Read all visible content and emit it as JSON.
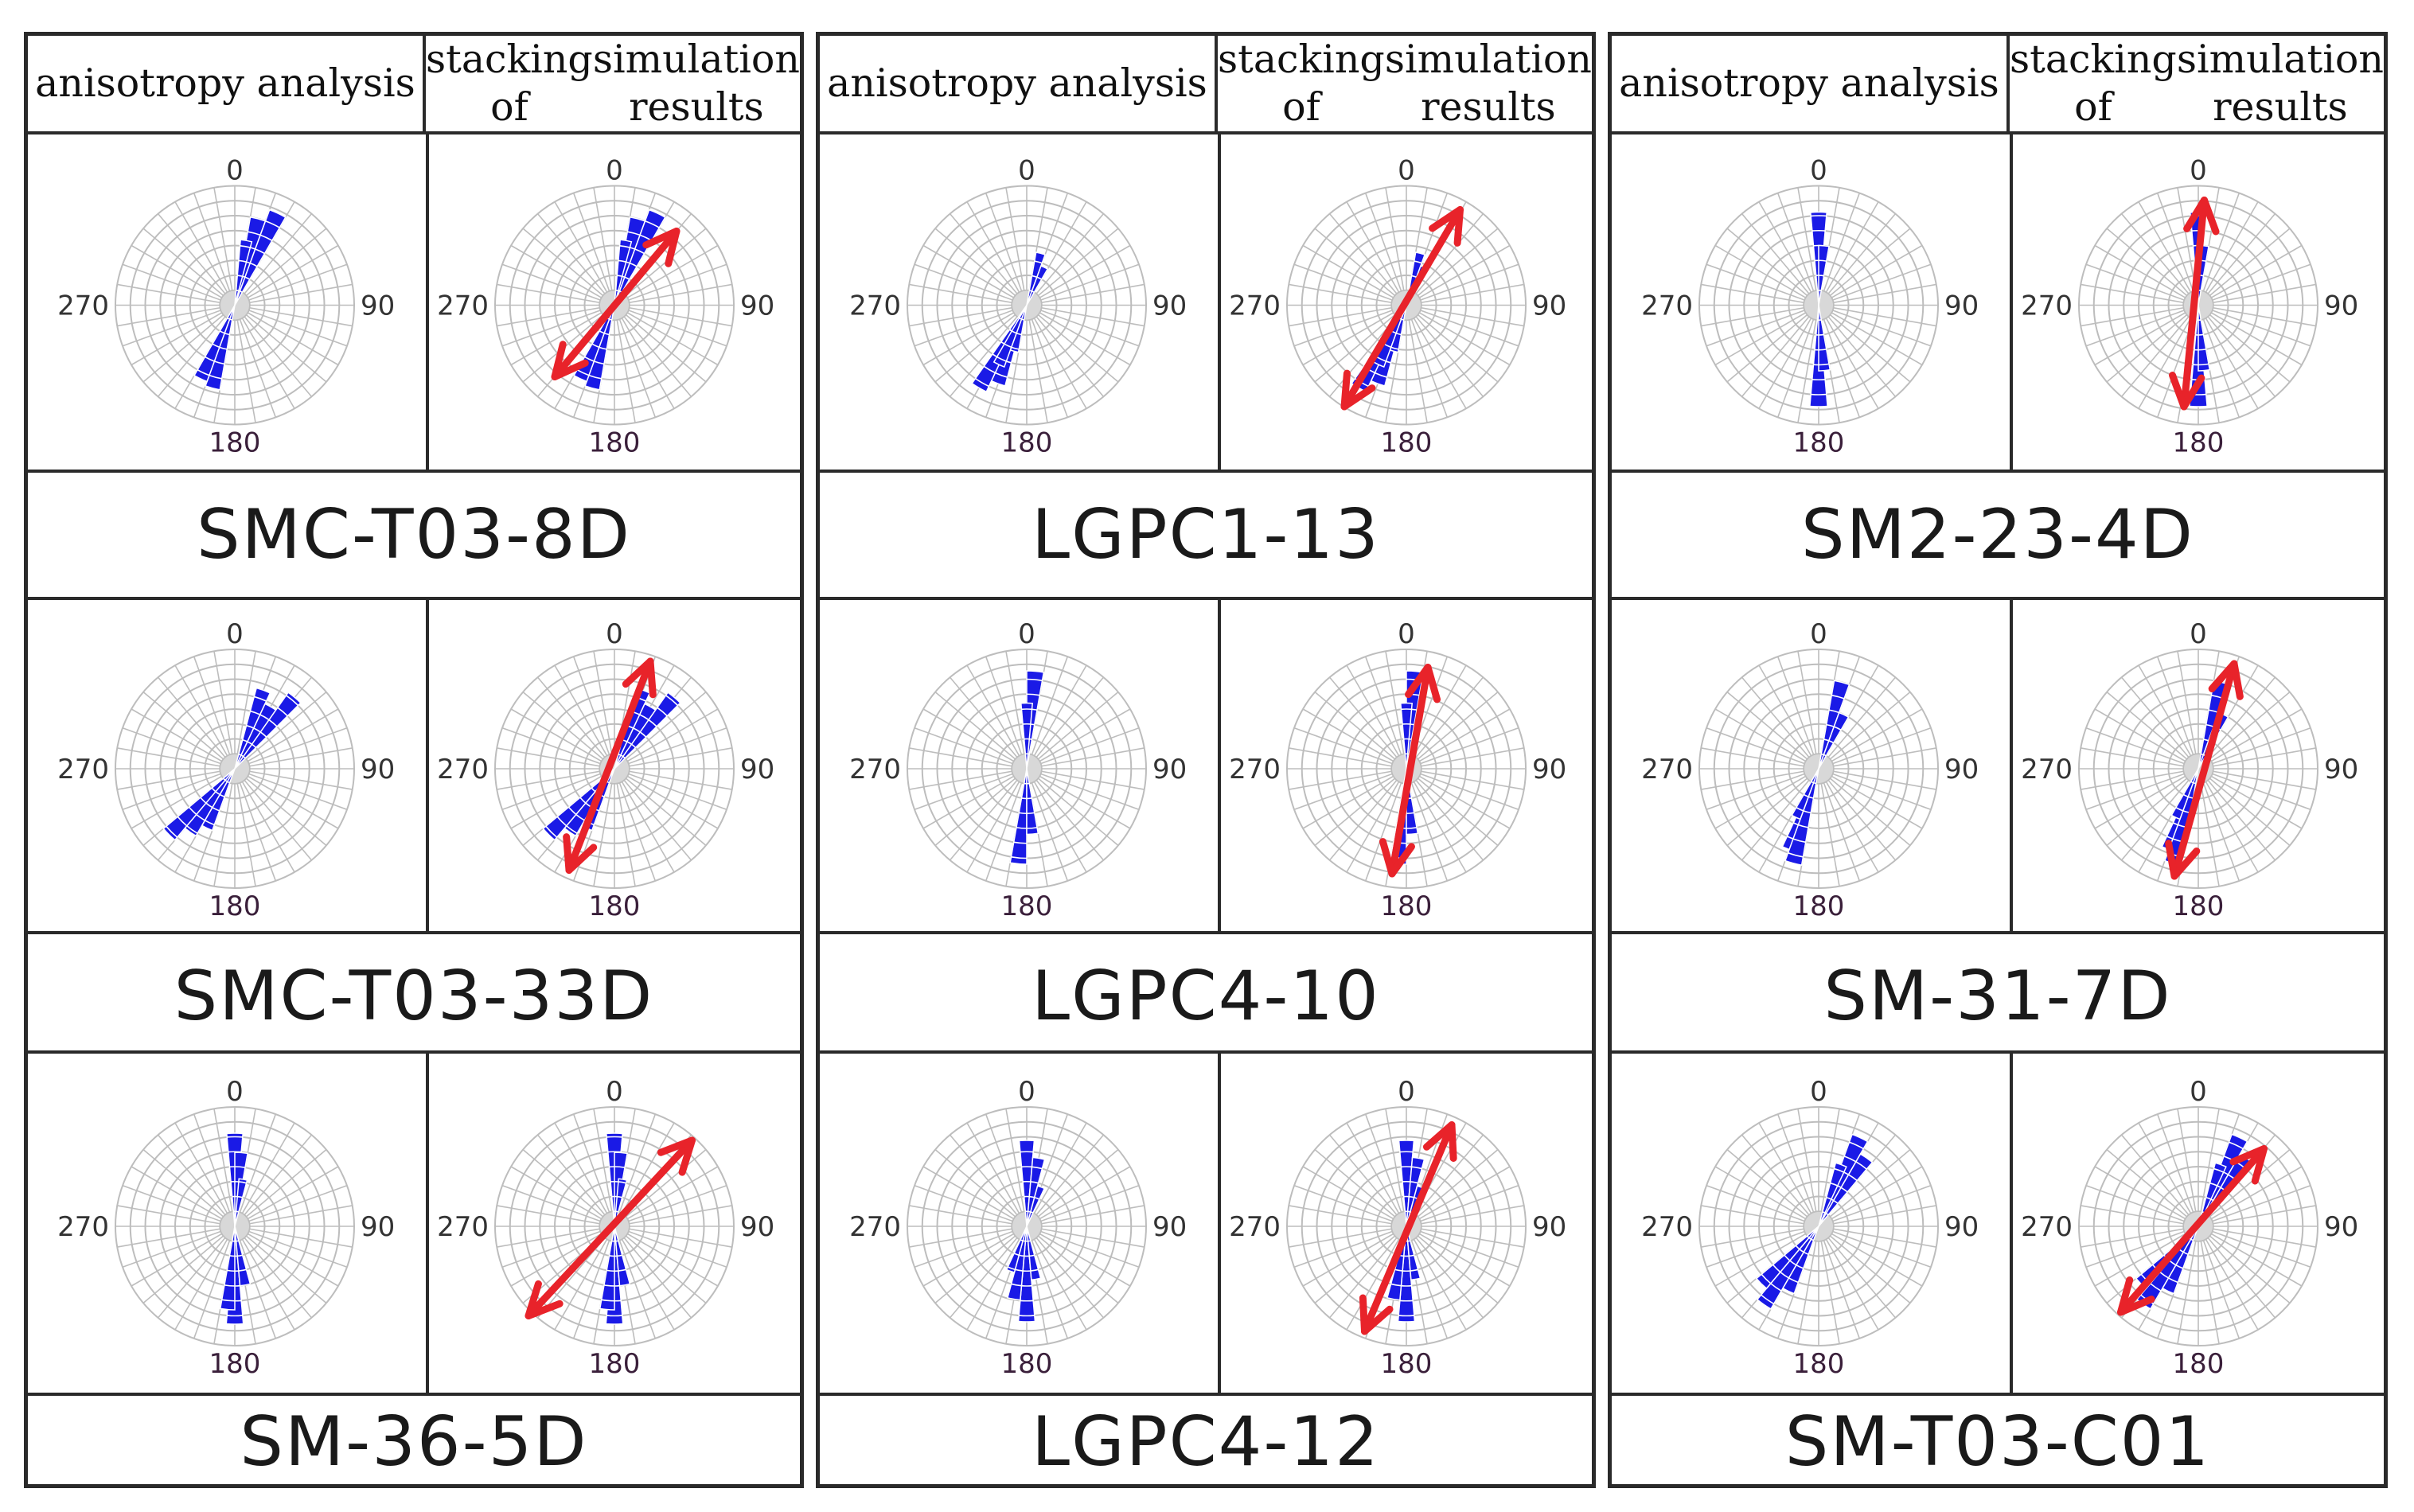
{
  "headers": {
    "left": "anisotropy analysis",
    "right_line1": "stacking of",
    "right_line2": "simulation results"
  },
  "compass_labels": {
    "north": "0",
    "east": "90",
    "south": "180",
    "west": "270"
  },
  "colors": {
    "petal": "#1a1ae6",
    "arrow": "#e8232a",
    "grid": "#bdbdbd",
    "border": "#2a2a2a"
  },
  "panels": [
    {
      "samples": [
        {
          "name": "SMC-T03-8D",
          "petals": [
            [
              15,
              0.75
            ],
            [
              25,
              0.85
            ],
            [
              195,
              0.72
            ],
            [
              205,
              0.68
            ],
            [
              10,
              0.55
            ]
          ],
          "arrow": {
            "from": [
              -0.5,
              0.6
            ],
            "to": [
              0.52,
              -0.62
            ]
          }
        },
        {
          "name": "SMC-T03-33D",
          "petals": [
            [
              20,
              0.7
            ],
            [
              30,
              0.6
            ],
            [
              40,
              0.78
            ],
            [
              215,
              0.65
            ],
            [
              225,
              0.78
            ],
            [
              205,
              0.55
            ]
          ],
          "arrow": {
            "from": [
              -0.38,
              0.85
            ],
            "to": [
              0.3,
              -0.9
            ]
          }
        },
        {
          "name": "SM-36-5D",
          "petals": [
            [
              0,
              0.78
            ],
            [
              5,
              0.62
            ],
            [
              180,
              0.82
            ],
            [
              185,
              0.7
            ],
            [
              170,
              0.5
            ],
            [
              10,
              0.4
            ]
          ],
          "arrow": {
            "from": [
              -0.72,
              0.75
            ],
            "to": [
              0.65,
              -0.72
            ]
          }
        }
      ]
    },
    {
      "samples": [
        {
          "name": "LGPC1-13",
          "petals": [
            [
              15,
              0.45
            ],
            [
              25,
              0.35
            ],
            [
              200,
              0.7
            ],
            [
              210,
              0.8
            ],
            [
              205,
              0.55
            ],
            [
              195,
              0.4
            ]
          ],
          "arrow": {
            "from": [
              -0.52,
              0.85
            ],
            "to": [
              0.45,
              -0.8
            ]
          }
        },
        {
          "name": "LGPC4-10",
          "petals": [
            [
              5,
              0.82
            ],
            [
              185,
              0.8
            ],
            [
              175,
              0.55
            ],
            [
              0,
              0.55
            ]
          ],
          "arrow": {
            "from": [
              -0.12,
              0.88
            ],
            "to": [
              0.18,
              -0.85
            ]
          }
        },
        {
          "name": "LGPC4-12",
          "petals": [
            [
              0,
              0.72
            ],
            [
              10,
              0.58
            ],
            [
              180,
              0.8
            ],
            [
              190,
              0.62
            ],
            [
              170,
              0.45
            ],
            [
              20,
              0.35
            ],
            [
              200,
              0.4
            ]
          ],
          "arrow": {
            "from": [
              -0.35,
              0.88
            ],
            "to": [
              0.38,
              -0.85
            ]
          }
        }
      ]
    },
    {
      "samples": [
        {
          "name": "SM2-23-4D",
          "petals": [
            [
              0,
              0.78
            ],
            [
              180,
              0.85
            ],
            [
              175,
              0.55
            ],
            [
              5,
              0.5
            ]
          ],
          "arrow": {
            "from": [
              -0.12,
              0.85
            ],
            "to": [
              0.05,
              -0.88
            ]
          }
        },
        {
          "name": "SM-31-7D",
          "petals": [
            [
              15,
              0.75
            ],
            [
              25,
              0.5
            ],
            [
              200,
              0.72
            ],
            [
              195,
              0.82
            ],
            [
              205,
              0.45
            ]
          ],
          "arrow": {
            "from": [
              -0.2,
              0.9
            ],
            "to": [
              0.3,
              -0.88
            ]
          }
        },
        {
          "name": "SM-T03-C01",
          "petals": [
            [
              25,
              0.82
            ],
            [
              35,
              0.7
            ],
            [
              215,
              0.8
            ],
            [
              225,
              0.68
            ],
            [
              205,
              0.6
            ],
            [
              20,
              0.55
            ]
          ],
          "arrow": {
            "from": [
              -0.65,
              0.72
            ],
            "to": [
              0.55,
              -0.65
            ]
          }
        }
      ]
    }
  ]
}
